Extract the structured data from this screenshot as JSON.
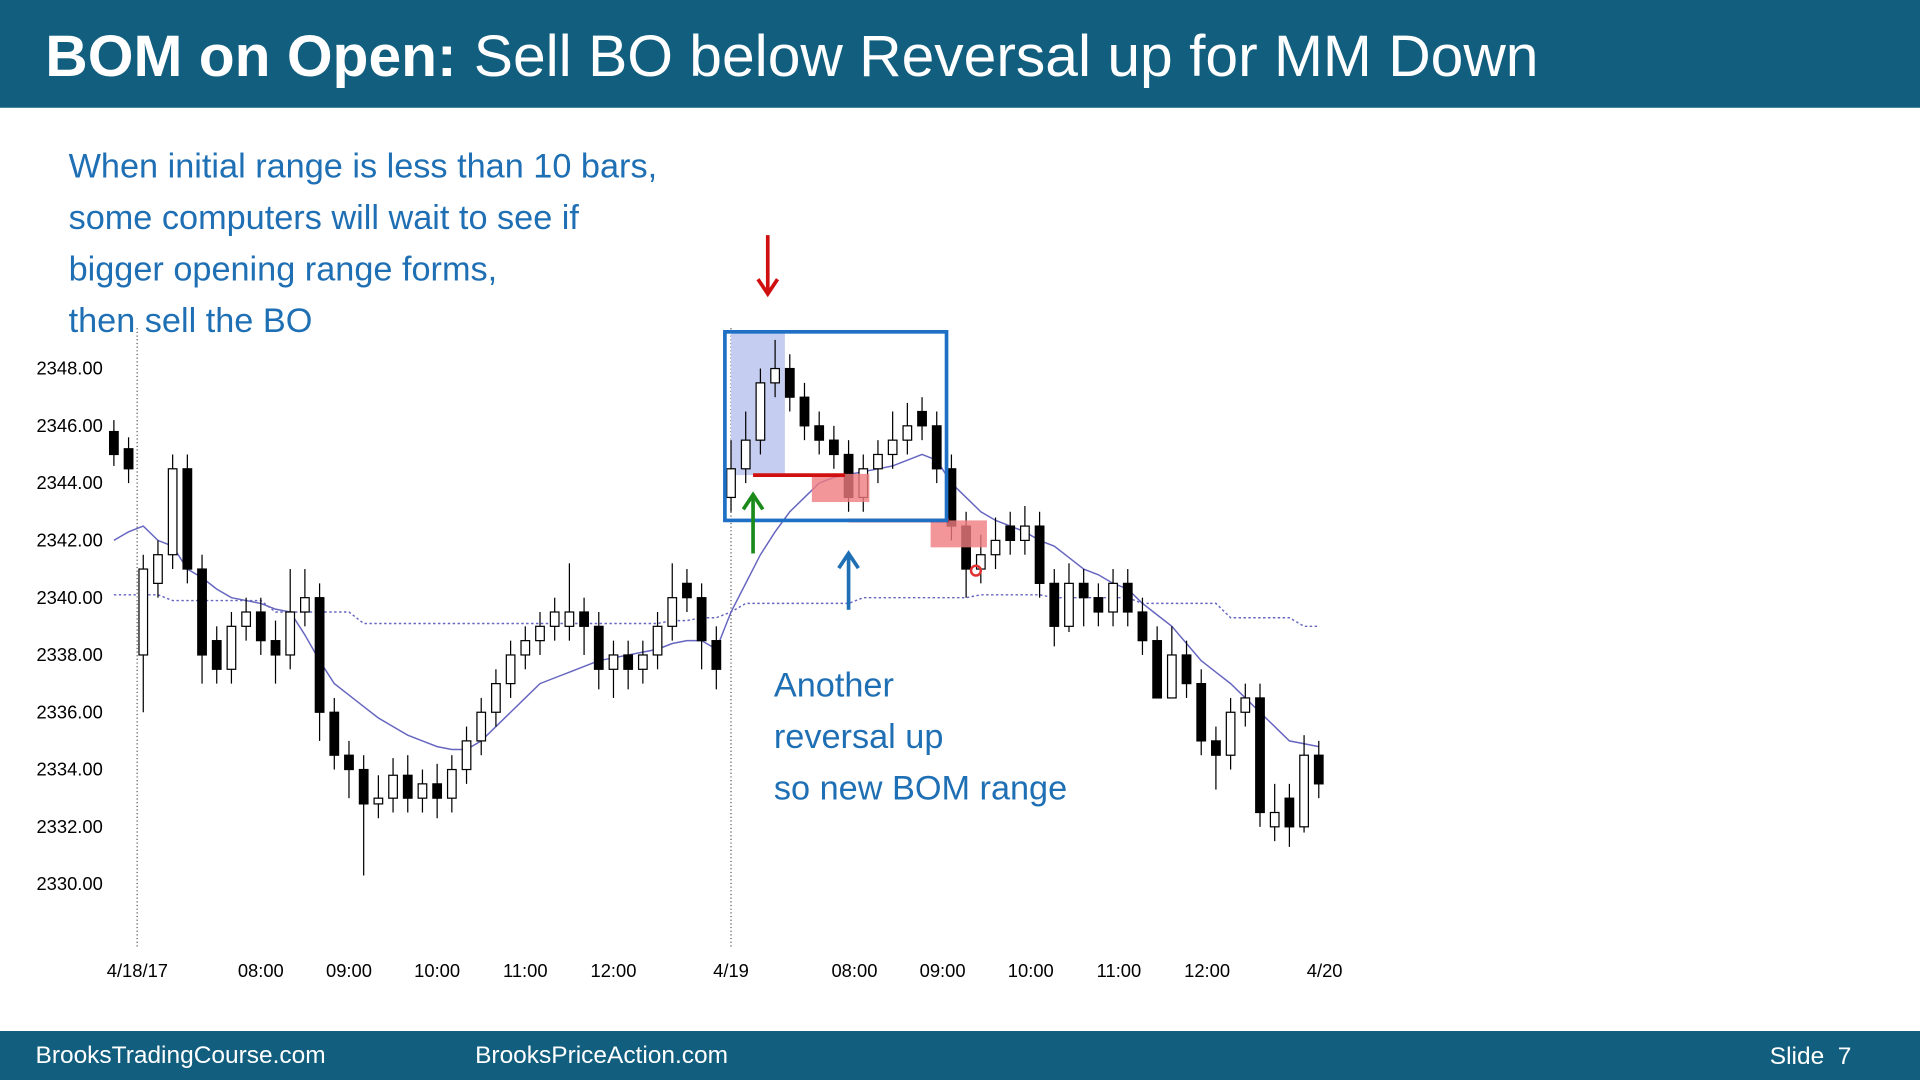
{
  "header": {
    "title_bold": "BOM on Open:",
    "title_rest": "Sell BO below Reversal up for MM Down"
  },
  "chart_data": {
    "type": "candlestick",
    "xlim": [
      -1,
      84
    ],
    "ylim": [
      2328,
      2350
    ],
    "yticks": [
      {
        "value": 2348,
        "label": "2348.00"
      },
      {
        "value": 2346,
        "label": "2346.00"
      },
      {
        "value": 2344,
        "label": "2344.00"
      },
      {
        "value": 2342,
        "label": "2342.00"
      },
      {
        "value": 2340,
        "label": "2340.00"
      },
      {
        "value": 2338,
        "label": "2338.00"
      },
      {
        "value": 2336,
        "label": "2336.00"
      },
      {
        "value": 2334,
        "label": "2334.00"
      },
      {
        "value": 2332,
        "label": "2332.00"
      },
      {
        "value": 2330,
        "label": "2330.00"
      }
    ],
    "xticks": [
      {
        "value": 1.6,
        "label": "4/18/17"
      },
      {
        "value": 10,
        "label": "08:00"
      },
      {
        "value": 16,
        "label": "09:00"
      },
      {
        "value": 22,
        "label": "10:00"
      },
      {
        "value": 28,
        "label": "11:00"
      },
      {
        "value": 34,
        "label": "12:00"
      },
      {
        "value": 42,
        "label": "4/19"
      },
      {
        "value": 50.4,
        "label": "08:00"
      },
      {
        "value": 56.4,
        "label": "09:00"
      },
      {
        "value": 62.4,
        "label": "10:00"
      },
      {
        "value": 68.4,
        "label": "11:00"
      },
      {
        "value": 74.4,
        "label": "12:00"
      },
      {
        "value": 82.4,
        "label": "4/20"
      }
    ],
    "up_color": "#ffffff",
    "down_color": "#000000",
    "open": [
      2345.8,
      2345.2,
      2338,
      2340.5,
      2341.5,
      2344.5,
      2341,
      2338.5,
      2337.5,
      2339,
      2339.5,
      2338.5,
      2338,
      2339.5,
      2340,
      2336,
      2334.5,
      2334,
      2332.8,
      2333,
      2333.8,
      2333,
      2333.5,
      2333,
      2334,
      2335,
      2336,
      2337,
      2338,
      2338.5,
      2339,
      2339,
      2339.5,
      2339,
      2337.5,
      2338,
      2337.5,
      2338,
      2339,
      2340.5,
      2340,
      2338.5,
      2343.5,
      2344.5,
      2345.5,
      2347.5,
      2348,
      2347,
      2346,
      2345.5,
      2345,
      2343.5,
      2344.5,
      2345,
      2345.5,
      2346.5,
      2346,
      2344.5,
      2342.5,
      2341,
      2341.5,
      2342.5,
      2342,
      2342.5,
      2340.5,
      2339,
      2340.5,
      2340,
      2339.5,
      2340.5,
      2339.5,
      2338.5,
      2336.5,
      2338,
      2337,
      2335,
      2334.5,
      2336,
      2336.5,
      2332,
      2333,
      2332,
      2334.5
    ],
    "high": [
      2346.2,
      2345.6,
      2341.5,
      2342,
      2345,
      2345,
      2341.5,
      2339,
      2339.5,
      2340,
      2340,
      2339.2,
      2341,
      2341,
      2340.5,
      2336.5,
      2335,
      2334.5,
      2333.8,
      2334.4,
      2334.5,
      2334,
      2334.2,
      2334.5,
      2335.5,
      2336.5,
      2337.5,
      2338.5,
      2339,
      2339.5,
      2340,
      2341.2,
      2340,
      2339.5,
      2338.5,
      2338.5,
      2338.5,
      2339.5,
      2341.2,
      2341,
      2340.5,
      2339,
      2345.5,
      2346.5,
      2348,
      2349,
      2348.5,
      2347.5,
      2346.5,
      2346,
      2345.5,
      2345,
      2345.5,
      2346.5,
      2346.8,
      2347,
      2346.5,
      2345,
      2343,
      2342.2,
      2342.8,
      2343,
      2343.2,
      2343,
      2341,
      2341.2,
      2341,
      2340.5,
      2341,
      2341,
      2340,
      2339,
      2339,
      2338.5,
      2337.5,
      2335.5,
      2336.5,
      2337,
      2337,
      2333.5,
      2333.5,
      2335.2,
      2335
    ],
    "low": [
      2344.6,
      2344,
      2336,
      2340,
      2341,
      2340.5,
      2337,
      2337,
      2337,
      2338.5,
      2338,
      2337,
      2337.5,
      2339,
      2335,
      2334,
      2333,
      2330.3,
      2332.3,
      2332.5,
      2332.5,
      2332.5,
      2332.3,
      2332.5,
      2333.5,
      2334.5,
      2335.5,
      2336.5,
      2337.5,
      2338,
      2338.5,
      2338.5,
      2338,
      2336.8,
      2336.5,
      2336.8,
      2337,
      2337.5,
      2338.5,
      2339.5,
      2337.5,
      2336.8,
      2343,
      2344,
      2345,
      2347,
      2346.5,
      2345.5,
      2345,
      2344.5,
      2343,
      2343,
      2344,
      2344.5,
      2345,
      2345.5,
      2344,
      2342,
      2340,
      2340.5,
      2341,
      2341.5,
      2341.5,
      2340,
      2338.3,
      2338.8,
      2339,
      2339,
      2339,
      2339,
      2338,
      2336.5,
      2336.5,
      2336.5,
      2334.5,
      2333.3,
      2334,
      2335.5,
      2332,
      2331.5,
      2331.3,
      2331.8,
      2333
    ],
    "close": [
      2345,
      2344.5,
      2341,
      2341.5,
      2344.5,
      2341,
      2338,
      2337.5,
      2339,
      2339.5,
      2338.5,
      2338,
      2339.5,
      2340,
      2336,
      2334.5,
      2334,
      2332.8,
      2333,
      2333.8,
      2333,
      2333.5,
      2333,
      2334,
      2335,
      2336,
      2337,
      2338,
      2338.5,
      2339,
      2339.5,
      2339.5,
      2339,
      2337.5,
      2338,
      2337.5,
      2338,
      2339,
      2340,
      2340,
      2338.5,
      2337.5,
      2344.5,
      2345.5,
      2347.5,
      2348,
      2347,
      2346,
      2345.5,
      2345,
      2343.5,
      2344.5,
      2345,
      2345.5,
      2346,
      2346,
      2344.5,
      2342.5,
      2341,
      2341.5,
      2342,
      2342,
      2342.5,
      2340.5,
      2339,
      2340.5,
      2340,
      2339.5,
      2340.5,
      2339.5,
      2338.5,
      2336.5,
      2338,
      2337,
      2335,
      2334.5,
      2336,
      2336.5,
      2332.5,
      2332.5,
      2332,
      2334.5,
      2333.5
    ],
    "lines": [
      {
        "color": "#6666c0",
        "dashed": false,
        "values": [
          2342,
          2342.3,
          2342.5,
          2342,
          2341.8,
          2341,
          2340.7,
          2340.3,
          2340,
          2339.9,
          2339.8,
          2339.6,
          2339.5,
          2338.7,
          2337.8,
          2337,
          2336.6,
          2336.2,
          2335.8,
          2335.5,
          2335.2,
          2335,
          2334.8,
          2334.7,
          2334.7,
          2335,
          2335.5,
          2336,
          2336.5,
          2337,
          2337.2,
          2337.4,
          2337.6,
          2337.8,
          2337.9,
          2338,
          2338.1,
          2338.2,
          2338.4,
          2338.5,
          2338.5,
          2338.2,
          2339.5,
          2340.5,
          2341.5,
          2342.3,
          2343,
          2343.5,
          2344,
          2344.2,
          2344.3,
          2344.4,
          2344.5,
          2344.6,
          2344.8,
          2345,
          2344.8,
          2344,
          2343.5,
          2343,
          2342.7,
          2342.5,
          2342.3,
          2342,
          2341.8,
          2341.4,
          2341,
          2340.8,
          2340.5,
          2340.3,
          2339.8,
          2339.4,
          2339,
          2338.4,
          2337.8,
          2337.4,
          2337,
          2336.5,
          2336,
          2335.5,
          2335,
          2334.9,
          2334.8
        ]
      },
      {
        "color": "#6666c0",
        "dashed": true,
        "values": [
          2340.1,
          2340.1,
          2340.1,
          2340.1,
          2339.9,
          2339.9,
          2339.9,
          2339.9,
          2339.9,
          2339.9,
          2339.9,
          2339.5,
          2339.5,
          2339.5,
          2339.5,
          2339.5,
          2339.5,
          2339.1,
          2339.1,
          2339.1,
          2339.1,
          2339.1,
          2339.1,
          2339.1,
          2339.1,
          2339.1,
          2339.1,
          2339.1,
          2339.1,
          2339.1,
          2339.1,
          2339.1,
          2339.1,
          2339.1,
          2339.1,
          2339.1,
          2339.1,
          2339.1,
          2339.2,
          2339.2,
          2339.3,
          2339.3,
          2339.5,
          2339.8,
          2339.8,
          2339.8,
          2339.8,
          2339.8,
          2339.8,
          2339.8,
          2339.8,
          2340,
          2340,
          2340,
          2340,
          2340,
          2340,
          2340,
          2340,
          2340.1,
          2340.1,
          2340.1,
          2340.1,
          2340.1,
          2340,
          2340,
          2340,
          2340,
          2340,
          2340,
          2339.8,
          2339.8,
          2339.8,
          2339.8,
          2339.8,
          2339.8,
          2339.3,
          2339.3,
          2339.3,
          2339.3,
          2339.3,
          2339,
          2339
        ]
      }
    ],
    "annotations": [
      [
        "When initial range is less than 10 bars,",
        "some computers will wait to see if",
        "bigger opening range forms,",
        "then sell the BO"
      ],
      [
        "Another",
        "reversal up",
        "so new BOM range"
      ]
    ]
  },
  "footer": {
    "left": "BrooksTradingCourse.com",
    "middle": "BrooksPriceAction.com",
    "right": "Slide  7"
  }
}
